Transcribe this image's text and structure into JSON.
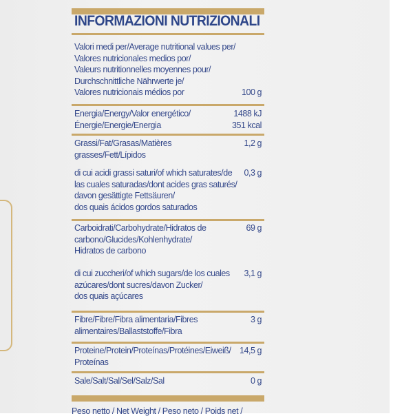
{
  "title": "INFORMAZIONI NUTRIZIONALI",
  "header": {
    "label": [
      "Valori medi per/Average nutritional values per/",
      "Valores nutricionales medios por/",
      "Valeurs nutritionnelles moyennes pour/",
      "Durchschnittliche Nährwerte je/",
      "Valores nutricionais médios por"
    ],
    "value": "100 g"
  },
  "energy": {
    "label": [
      "Energia/Energy/Valor energético/",
      "Énergie/Energie/Energia"
    ],
    "kj": "1488 kJ",
    "kcal": "351 kcal"
  },
  "rows": [
    {
      "label": [
        "Grassi/Fat/Grasas/Matières",
        "grasses/Fett/Lípidos"
      ],
      "value": "1,2 g"
    },
    {
      "label": [
        "di cui acidi grassi saturi/of which saturates/de",
        "las cuales saturadas/dont acides gras saturés/",
        "davon gesättigte Fettsäuren/",
        "dos quais ácidos gordos saturados"
      ],
      "value": "0,3 g"
    },
    {
      "label": [
        "Carboidrati/Carbohydrate/Hidratos de",
        "carbono/Glucides/Kohlenhydrate/",
        "Hidratos de carbono"
      ],
      "value": "69 g"
    },
    {
      "label": [
        "di cui zuccheri/of which sugars/de los cuales",
        "azúcares/dont sucres/davon Zucker/",
        "dos quais açúcares"
      ],
      "value": "3,1 g"
    },
    {
      "label": [
        "Fibre/Fibre/Fibra alimentaria/Fibres",
        "alimentaires/Ballaststoffe/Fibra"
      ],
      "value": "3 g"
    },
    {
      "label": [
        "Proteine/Protein/Proteínas/Protéines/Eiweiß/",
        "Proteínas"
      ],
      "value": "14,5 g"
    },
    {
      "label": [
        "Sale/Salt/Sal/Sel/Salz/Sal"
      ],
      "value": "0 g"
    }
  ],
  "footer": "Peso netto / Net Weight / Peso neto / Poids net /",
  "colors": {
    "text": "#34488a",
    "rule": "#c9a86a"
  }
}
